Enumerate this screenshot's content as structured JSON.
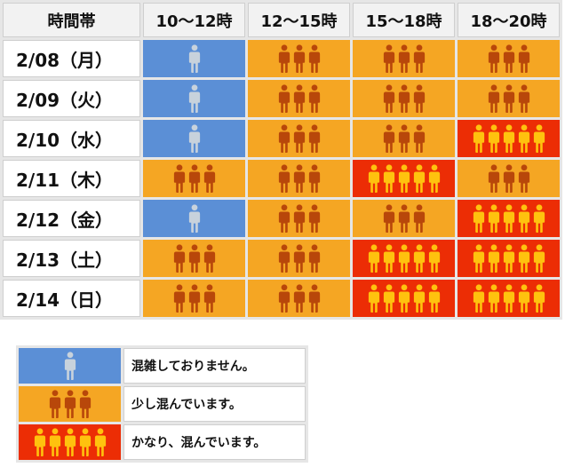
{
  "header": {
    "corner_label": "時間帯",
    "time_slots": [
      "10～12時",
      "12～15時",
      "15～18時",
      "18～20時"
    ]
  },
  "rows": [
    {
      "date": "2/08（月）",
      "levels": [
        0,
        1,
        1,
        1
      ]
    },
    {
      "date": "2/09（火）",
      "levels": [
        0,
        1,
        1,
        1
      ]
    },
    {
      "date": "2/10（水）",
      "levels": [
        0,
        1,
        1,
        2
      ]
    },
    {
      "date": "2/11（木）",
      "levels": [
        1,
        1,
        2,
        1
      ]
    },
    {
      "date": "2/12（金）",
      "levels": [
        0,
        1,
        1,
        2
      ]
    },
    {
      "date": "2/13（土）",
      "levels": [
        1,
        1,
        2,
        2
      ]
    },
    {
      "date": "2/14（日）",
      "levels": [
        1,
        1,
        2,
        2
      ]
    }
  ],
  "levels": [
    {
      "label": "混雑しておりません。",
      "icon": "single-person-icon",
      "count": 1,
      "bg_color": "#5b8fd6",
      "person_color": "#c8d2dc"
    },
    {
      "label": "少し混んでいます。",
      "icon": "three-people-icon",
      "count": 3,
      "bg_color": "#f5a623",
      "person_color": "#b8470a"
    },
    {
      "label": "かなり、混んでいます。",
      "icon": "five-people-icon",
      "count": 5,
      "bg_color": "#ec2d05",
      "person_color": "#ffc20e"
    }
  ]
}
